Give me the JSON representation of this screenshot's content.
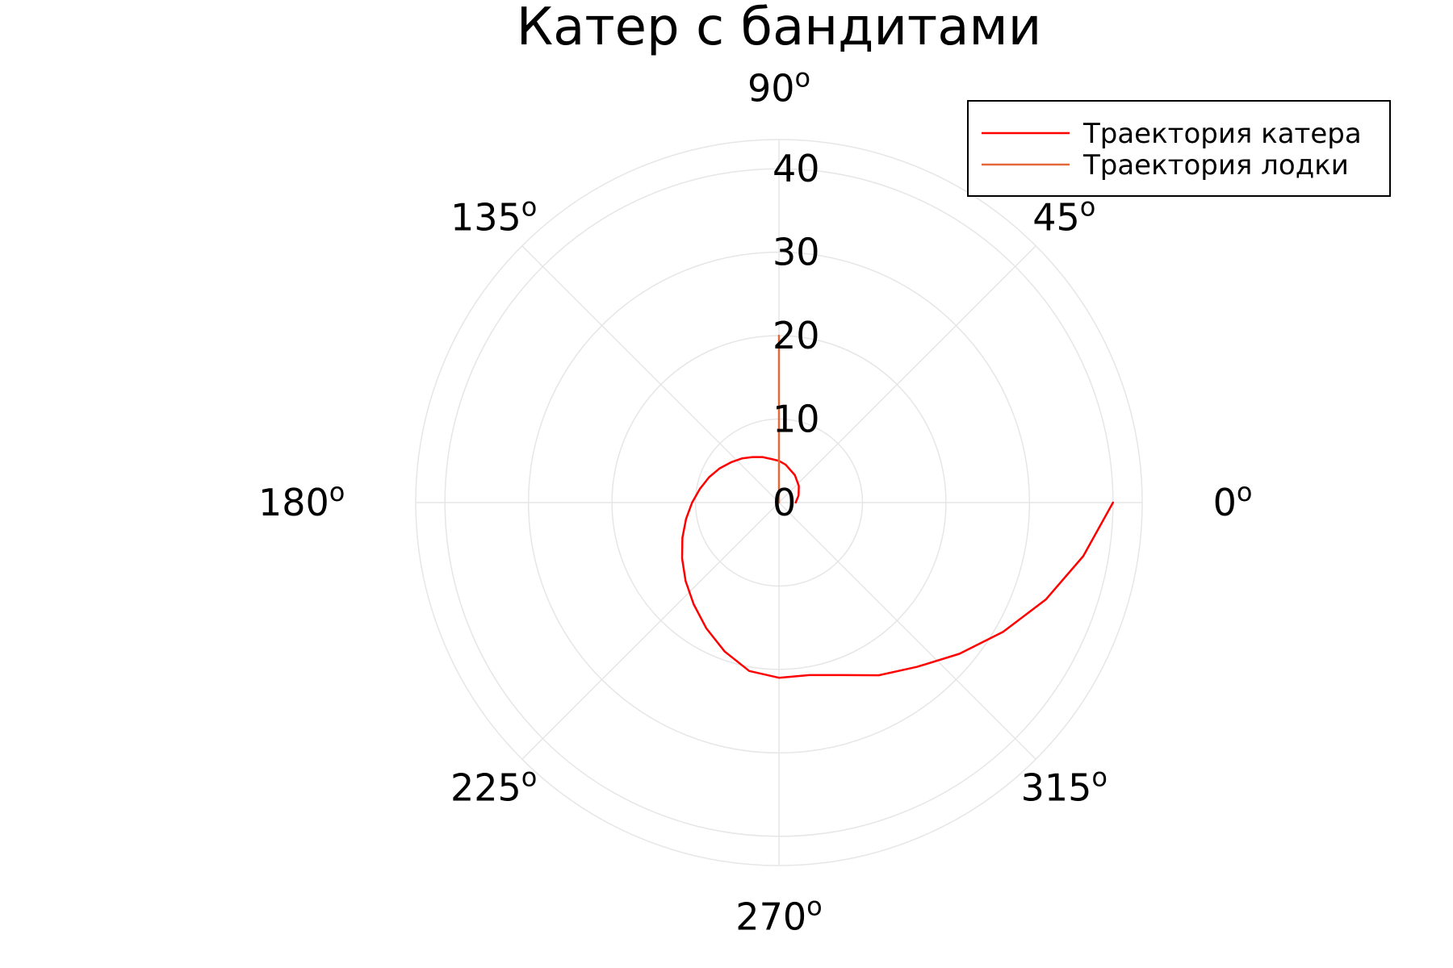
{
  "chart_data": {
    "type": "line",
    "projection": "polar",
    "title": "Катер с бандитами",
    "angle_unit_symbol": "o",
    "angle_ticks": [
      0,
      45,
      90,
      135,
      180,
      225,
      270,
      315
    ],
    "radial_ticks": [
      0,
      10,
      20,
      30,
      40
    ],
    "rlim": [
      0,
      43.5
    ],
    "grid": true,
    "legend_position": "top-right",
    "series": [
      {
        "name": "Траектория катера",
        "color": "#ff0000",
        "theta_deg": [
          0,
          20,
          40,
          60,
          80,
          90,
          100,
          110,
          120,
          130,
          140,
          150,
          160,
          170,
          180,
          190,
          200,
          210,
          220,
          230,
          240,
          250,
          260,
          270,
          280,
          290,
          300,
          310,
          320,
          330,
          340,
          350,
          360
        ],
        "r": [
          2.0,
          2.5,
          3.1,
          3.8,
          4.6,
          5.0,
          5.3,
          5.8,
          6.3,
          6.9,
          7.5,
          8.2,
          8.9,
          9.6,
          10.4,
          11.3,
          12.3,
          13.4,
          14.6,
          15.9,
          17.4,
          19.0,
          20.5,
          21.0,
          21.0,
          22.0,
          23.9,
          25.7,
          28.2,
          31.0,
          34.0,
          37.0,
          40.0
        ]
      },
      {
        "name": "Траектория лодки",
        "color": "#e26a3a",
        "theta_deg": [
          90,
          90
        ],
        "r": [
          0,
          20
        ]
      }
    ]
  }
}
